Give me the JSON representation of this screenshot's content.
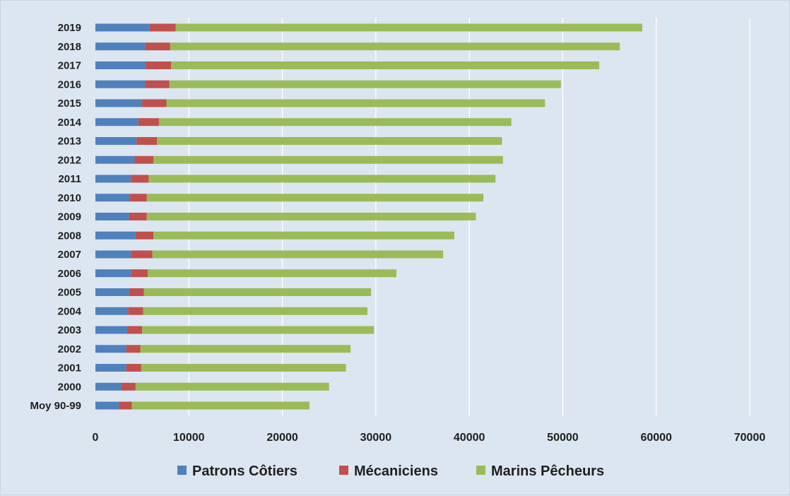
{
  "chart_data": {
    "type": "bar",
    "orientation": "horizontal",
    "stacked": true,
    "categories": [
      "Moy 90-99",
      "2000",
      "2001",
      "2002",
      "2003",
      "2004",
      "2005",
      "2006",
      "2007",
      "2008",
      "2009",
      "2010",
      "2011",
      "2012",
      "2013",
      "2014",
      "2015",
      "2016",
      "2017",
      "2018",
      "2019"
    ],
    "series": [
      {
        "name": "Patrons Côtiers",
        "color": "#4f81bd",
        "values": [
          2500,
          2800,
          3300,
          3300,
          3400,
          3500,
          3600,
          3800,
          3800,
          4300,
          3600,
          3700,
          3800,
          4200,
          4400,
          4600,
          5000,
          5300,
          5400,
          5300,
          5800
        ]
      },
      {
        "name": "Mécaniciens",
        "color": "#c0504d",
        "values": [
          1400,
          1500,
          1600,
          1500,
          1600,
          1600,
          1600,
          1800,
          2300,
          1900,
          1900,
          1800,
          1900,
          2000,
          2200,
          2200,
          2600,
          2600,
          2700,
          2700,
          2800
        ]
      },
      {
        "name": "Marins Pêcheurs",
        "color": "#9bbb59",
        "values": [
          19000,
          20700,
          21900,
          22500,
          24800,
          24000,
          24300,
          26600,
          31100,
          32200,
          35200,
          36000,
          37100,
          37400,
          36900,
          37700,
          40500,
          41900,
          45800,
          48100,
          49900
        ]
      }
    ],
    "xlim": [
      0,
      70000
    ],
    "xticks": [
      "0",
      "10000",
      "20000",
      "30000",
      "40000",
      "50000",
      "60000",
      "70000"
    ],
    "grid": true,
    "legend_position": "bottom",
    "title": "",
    "xlabel": "",
    "ylabel": ""
  }
}
